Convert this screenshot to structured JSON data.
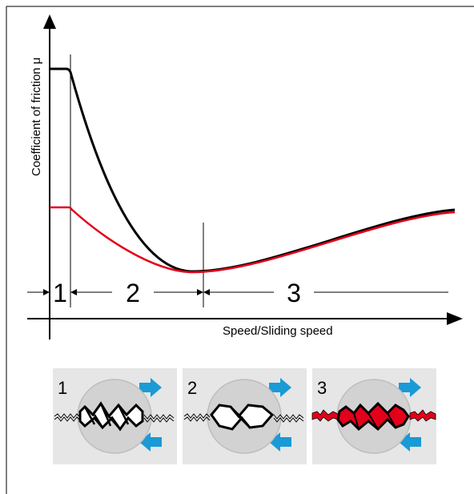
{
  "diagram": {
    "ylabel": "Coefficient of friction μ",
    "xlabel": "Speed/Sliding speed",
    "zones": [
      {
        "label": "1"
      },
      {
        "label": "2"
      },
      {
        "label": "3"
      }
    ],
    "curves": [
      {
        "color": "#000000"
      },
      {
        "color": "#e3001b"
      }
    ],
    "panels": [
      {
        "label": "1",
        "contact_color": "#ffffff"
      },
      {
        "label": "2",
        "contact_color": "#ffffff"
      },
      {
        "label": "3",
        "contact_color": "#e3001b"
      }
    ],
    "colors": {
      "panel_bg": "#e6e6e6",
      "circle_fill": "#d2d2d2",
      "arrow": "#1a9ad6",
      "red": "#e3001b"
    }
  }
}
